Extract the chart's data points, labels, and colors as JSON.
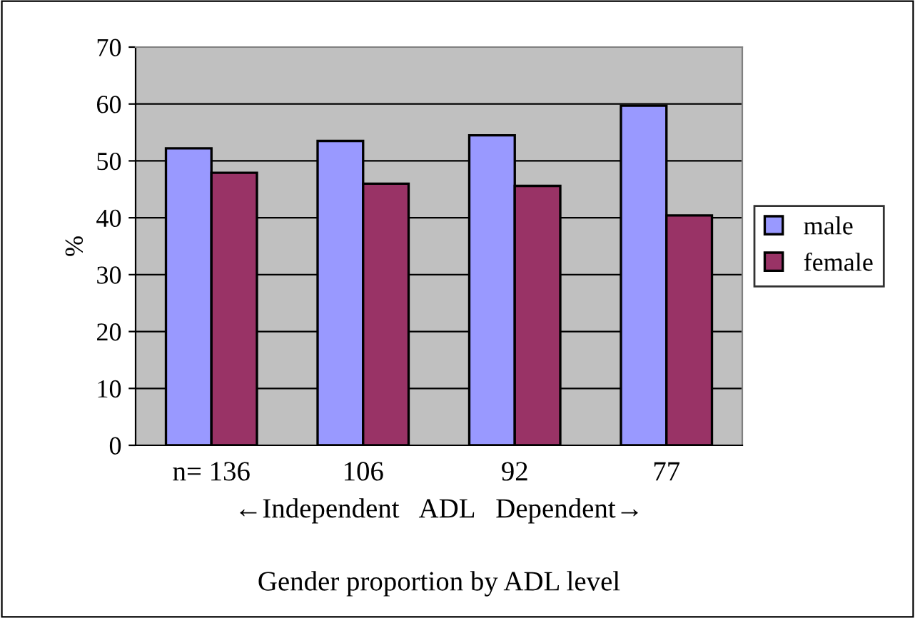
{
  "chart_data": {
    "type": "bar",
    "title": "Gender proportion by ADL level",
    "xlabel": "←Independent   ADL   Dependent→",
    "ylabel": "%",
    "categories": [
      "n= 136",
      "106",
      "92",
      "77"
    ],
    "series": [
      {
        "name": "male",
        "color": "#9999ff",
        "values": [
          52.2,
          53.5,
          54.5,
          59.7
        ]
      },
      {
        "name": "female",
        "color": "#993366",
        "values": [
          47.9,
          46.0,
          45.6,
          40.4
        ]
      }
    ],
    "ylim": [
      0,
      70
    ],
    "yticks": [
      0,
      10,
      20,
      30,
      40,
      50,
      60,
      70
    ],
    "grid": "y",
    "legend": "right"
  }
}
